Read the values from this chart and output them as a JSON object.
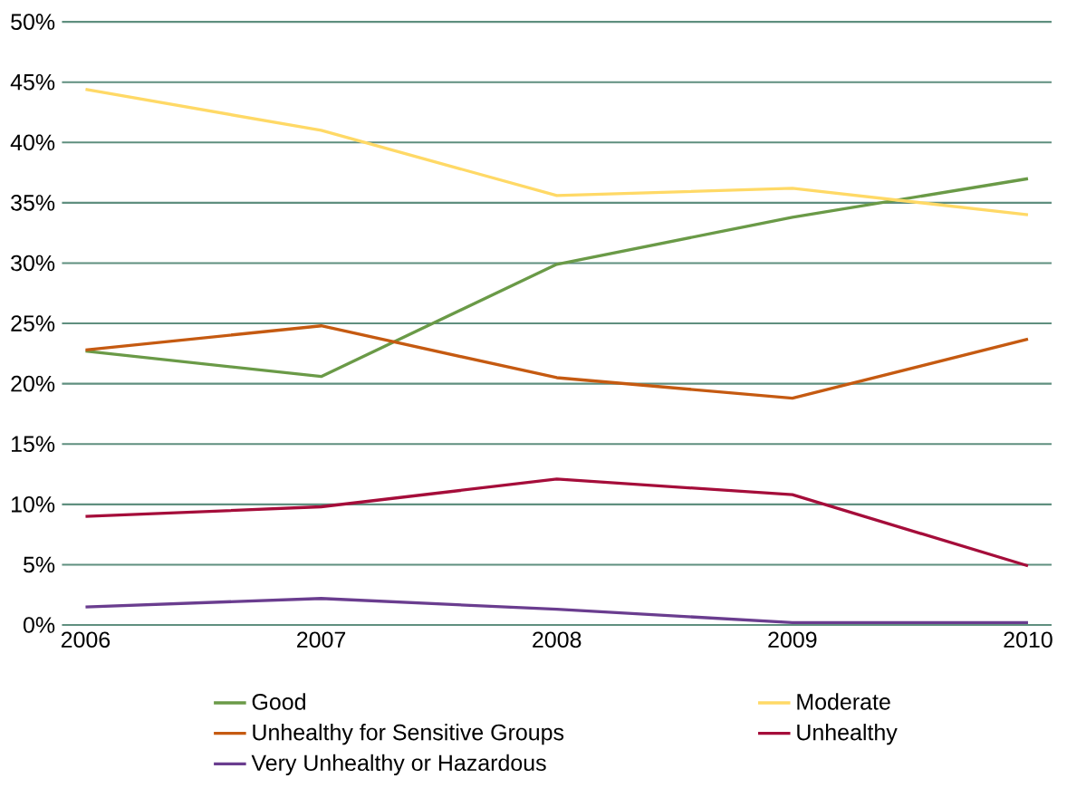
{
  "chart_data": {
    "type": "line",
    "categories": [
      "2006",
      "2007",
      "2008",
      "2009",
      "2010"
    ],
    "ylim": [
      0,
      50
    ],
    "yticks": [
      {
        "value": 0,
        "label": "0%"
      },
      {
        "value": 5,
        "label": "5%"
      },
      {
        "value": 10,
        "label": "10%"
      },
      {
        "value": 15,
        "label": "15%"
      },
      {
        "value": 20,
        "label": "20%"
      },
      {
        "value": 25,
        "label": "25%"
      },
      {
        "value": 30,
        "label": "30%"
      },
      {
        "value": 35,
        "label": "35%"
      },
      {
        "value": 40,
        "label": "40%"
      },
      {
        "value": 45,
        "label": "45%"
      },
      {
        "value": 50,
        "label": "50%"
      }
    ],
    "grid": "y",
    "legend": "bottom",
    "marker": "none",
    "line_style": "solid",
    "series": [
      {
        "name": "Good",
        "color": "#6a9a47",
        "values": [
          22.7,
          20.6,
          29.9,
          33.8,
          37.0
        ]
      },
      {
        "name": "Moderate",
        "color": "#ffd966",
        "values": [
          44.4,
          41.0,
          35.6,
          36.2,
          34.0
        ]
      },
      {
        "name": "Unhealthy for Sensitive Groups",
        "color": "#c55a11",
        "values": [
          22.8,
          24.8,
          20.5,
          18.8,
          23.7
        ]
      },
      {
        "name": "Unhealthy",
        "color": "#a50d3a",
        "values": [
          9.0,
          9.8,
          12.1,
          10.8,
          4.9
        ]
      },
      {
        "name": "Very Unhealthy or Hazardous",
        "color": "#6a3d8f",
        "values": [
          1.5,
          2.2,
          1.3,
          0.2,
          0.2
        ]
      }
    ]
  }
}
